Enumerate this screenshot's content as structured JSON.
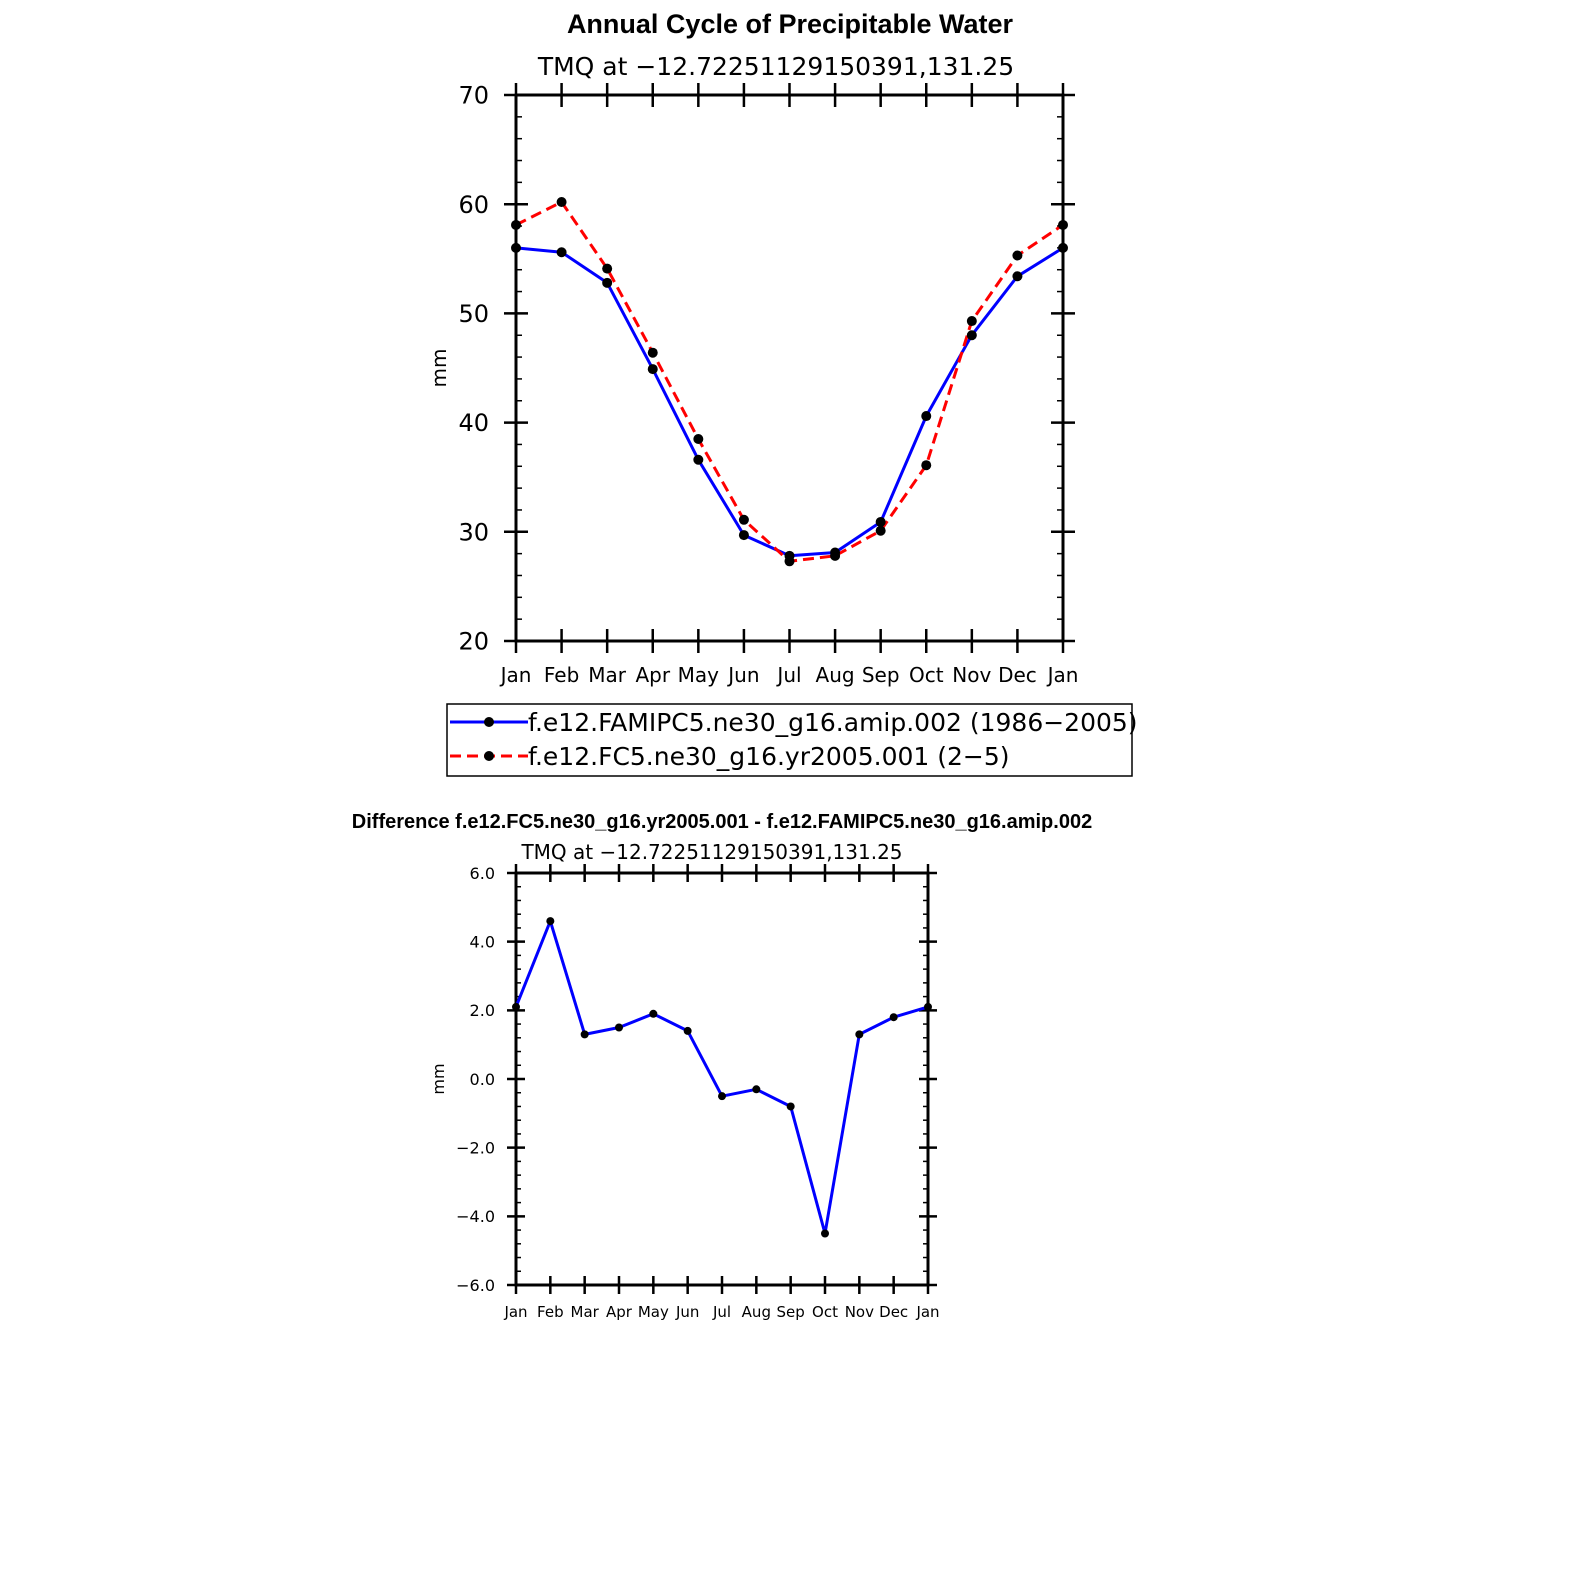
{
  "chart_data": [
    {
      "type": "line",
      "title": "Annual Cycle of Precipitable Water",
      "subtitle": "TMQ at −12.72251129150391,131.25",
      "xlabel": "",
      "ylabel": "mm",
      "categories": [
        "Jan",
        "Feb",
        "Mar",
        "Apr",
        "May",
        "Jun",
        "Jul",
        "Aug",
        "Sep",
        "Oct",
        "Nov",
        "Dec",
        "Jan"
      ],
      "ylim": [
        20,
        70
      ],
      "yticks": [
        "20",
        "30",
        "40",
        "50",
        "60",
        "70"
      ],
      "grid": false,
      "legend_position": "bottom",
      "series": [
        {
          "name": "f.e12.FAMIPC5.ne30_g16.amip.002 (1986−2005)",
          "color": "#0000ff",
          "style": "solid",
          "values": [
            56.0,
            55.6,
            52.8,
            44.9,
            36.6,
            29.7,
            27.8,
            28.1,
            30.9,
            40.6,
            48.0,
            53.4,
            56.0
          ]
        },
        {
          "name": "f.e12.FC5.ne30_g16.yr2005.001 (2−5)",
          "color": "#ff0000",
          "style": "dashed",
          "values": [
            58.1,
            60.2,
            54.1,
            46.4,
            38.5,
            31.1,
            27.3,
            27.8,
            30.1,
            36.1,
            49.3,
            55.3,
            58.1
          ]
        }
      ]
    },
    {
      "type": "line",
      "title": "Difference f.e12.FC5.ne30_g16.yr2005.001 - f.e12.FAMIPC5.ne30_g16.amip.002",
      "subtitle": "TMQ at −12.72251129150391,131.25",
      "xlabel": "",
      "ylabel": "mm",
      "categories": [
        "Jan",
        "Feb",
        "Mar",
        "Apr",
        "May",
        "Jun",
        "Jul",
        "Aug",
        "Sep",
        "Oct",
        "Nov",
        "Dec",
        "Jan"
      ],
      "ylim": [
        -6,
        6
      ],
      "yticks": [
        "−6.0",
        "−4.0",
        "−2.0",
        "0.0",
        "2.0",
        "4.0",
        "6.0"
      ],
      "grid": false,
      "series": [
        {
          "color": "#0000ff",
          "style": "solid",
          "values": [
            2.1,
            4.6,
            1.3,
            1.5,
            1.9,
            1.4,
            -0.5,
            -0.3,
            -0.8,
            -4.5,
            1.3,
            1.8,
            2.1
          ]
        }
      ]
    }
  ]
}
